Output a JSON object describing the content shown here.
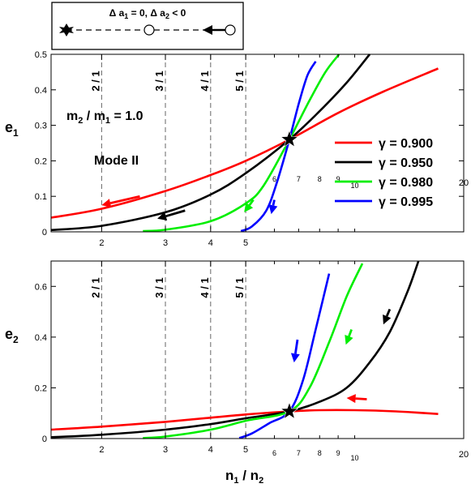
{
  "legend_box": {
    "label": "Δ a1 = 0, Δ a2 < 0",
    "parts": [
      "Δ a",
      "1",
      " = 0, Δ a",
      "2",
      " < 0"
    ]
  },
  "annotations": {
    "mass_ratio": [
      "m",
      "2",
      " / m",
      "1",
      " = 1.0"
    ],
    "mode": "Mode II"
  },
  "colors": {
    "0.900": "#ff0000",
    "0.950": "#000000",
    "0.980": "#00ee00",
    "0.995": "#0000ff"
  },
  "chart_data": [
    {
      "type": "line",
      "panel": "top",
      "ylabel": [
        "e",
        "1"
      ],
      "xscale": "log",
      "xlim": [
        1.45,
        20
      ],
      "ylim": [
        0,
        0.5
      ],
      "yticks": [
        "0",
        "0.1",
        "0.2",
        "0.3",
        "0.4",
        "0.5"
      ],
      "xticks": [
        {
          "value": 2,
          "label": "2"
        },
        {
          "value": 3,
          "label": "3"
        },
        {
          "value": 4,
          "label": "4"
        },
        {
          "value": 5,
          "label": "5"
        },
        {
          "value": 6,
          "label": "6"
        },
        {
          "value": 7,
          "label": "7"
        },
        {
          "value": 8,
          "label": "8"
        },
        {
          "value": 9,
          "label": "9"
        },
        {
          "value": 10,
          "label": "10"
        },
        {
          "value": 20,
          "label": "20"
        }
      ],
      "resonances": [
        {
          "x": 2,
          "label": "2 / 1"
        },
        {
          "x": 3,
          "label": "3 / 1"
        },
        {
          "x": 4,
          "label": "4 / 1"
        },
        {
          "x": 5,
          "label": "5 / 1"
        }
      ],
      "star": {
        "x": 6.6,
        "y": 0.26
      },
      "legend": [
        {
          "label": "γ = 0.900",
          "color": "#ff0000"
        },
        {
          "label": "γ = 0.950",
          "color": "#000000"
        },
        {
          "label": "γ = 0.980",
          "color": "#00ee00"
        },
        {
          "label": "γ = 0.995",
          "color": "#0000ff"
        }
      ],
      "series": [
        {
          "name": "γ = 0.900",
          "color": "#ff0000",
          "x": [
            1.45,
            2,
            3,
            4,
            5,
            6.6,
            9,
            12,
            17
          ],
          "y": [
            0.04,
            0.065,
            0.115,
            0.16,
            0.2,
            0.26,
            0.335,
            0.395,
            0.46
          ]
        },
        {
          "name": "γ = 0.950",
          "color": "#000000",
          "x": [
            1.45,
            2,
            3,
            4,
            5,
            6.6,
            8,
            9.5,
            11
          ],
          "y": [
            0.005,
            0.017,
            0.055,
            0.105,
            0.165,
            0.26,
            0.34,
            0.42,
            0.5
          ]
        },
        {
          "name": "γ = 0.980",
          "color": "#00ee00",
          "x": [
            2.6,
            3,
            4,
            5,
            5.6,
            6.6,
            7.5,
            8.3,
            9.05
          ],
          "y": [
            0.002,
            0.006,
            0.03,
            0.08,
            0.13,
            0.26,
            0.37,
            0.45,
            0.5
          ]
        },
        {
          "name": "γ = 0.995",
          "color": "#0000ff",
          "x": [
            4.85,
            5.2,
            5.7,
            6.1,
            6.6,
            7.0,
            7.4,
            7.8
          ],
          "y": [
            0.002,
            0.015,
            0.06,
            0.14,
            0.26,
            0.36,
            0.44,
            0.48
          ]
        }
      ],
      "arrows": [
        {
          "color": "#ff0000",
          "from": [
            2.55,
            0.1
          ],
          "to": [
            2.0,
            0.075
          ]
        },
        {
          "color": "#000000",
          "from": [
            3.4,
            0.06
          ],
          "to": [
            2.85,
            0.037
          ]
        },
        {
          "color": "#00ee00",
          "from": [
            5.25,
            0.09
          ],
          "to": [
            4.95,
            0.055
          ]
        },
        {
          "color": "#0000ff",
          "from": [
            6.0,
            0.09
          ],
          "to": [
            5.88,
            0.05
          ]
        }
      ]
    },
    {
      "type": "line",
      "panel": "bottom",
      "ylabel": [
        "e",
        "2"
      ],
      "xlabel": [
        "n",
        "1",
        " / n",
        "2"
      ],
      "xscale": "log",
      "xlim": [
        1.45,
        20
      ],
      "ylim": [
        0,
        0.7
      ],
      "yticks": [
        "0",
        "0.2",
        "0.4",
        "0.6"
      ],
      "xticks": [
        {
          "value": 2,
          "label": "2"
        },
        {
          "value": 3,
          "label": "3"
        },
        {
          "value": 4,
          "label": "4"
        },
        {
          "value": 5,
          "label": "5"
        },
        {
          "value": 6,
          "label": "6"
        },
        {
          "value": 7,
          "label": "7"
        },
        {
          "value": 8,
          "label": "8"
        },
        {
          "value": 9,
          "label": "9"
        },
        {
          "value": 10,
          "label": "10"
        },
        {
          "value": 20,
          "label": "20"
        }
      ],
      "resonances": [
        {
          "x": 2,
          "label": "2 / 1"
        },
        {
          "x": 3,
          "label": "3 / 1"
        },
        {
          "x": 4,
          "label": "4 / 1"
        },
        {
          "x": 5,
          "label": "5 / 1"
        }
      ],
      "star": {
        "x": 6.6,
        "y": 0.107
      },
      "series": [
        {
          "name": "γ = 0.900",
          "color": "#ff0000",
          "x": [
            1.45,
            2,
            3,
            4,
            5,
            6.6,
            8,
            10,
            13,
            17
          ],
          "y": [
            0.035,
            0.047,
            0.066,
            0.082,
            0.095,
            0.107,
            0.112,
            0.112,
            0.107,
            0.097
          ]
        },
        {
          "name": "γ = 0.950",
          "color": "#000000",
          "x": [
            1.45,
            2,
            3,
            4,
            5,
            6.6,
            8,
            9.5,
            11,
            12.5,
            14,
            15
          ],
          "y": [
            0.005,
            0.015,
            0.035,
            0.057,
            0.08,
            0.107,
            0.145,
            0.2,
            0.3,
            0.42,
            0.58,
            0.7
          ]
        },
        {
          "name": "γ = 0.980",
          "color": "#00ee00",
          "x": [
            2.6,
            3,
            4,
            5,
            6.6,
            7.5,
            8.5,
            9.5,
            10.5
          ],
          "y": [
            0.002,
            0.008,
            0.035,
            0.07,
            0.107,
            0.2,
            0.38,
            0.56,
            0.69
          ]
        },
        {
          "name": "γ = 0.995",
          "color": "#0000ff",
          "x": [
            4.8,
            5.2,
            5.8,
            6.6,
            7.2,
            7.8,
            8.5
          ],
          "y": [
            0.002,
            0.02,
            0.06,
            0.107,
            0.23,
            0.43,
            0.65
          ]
        }
      ],
      "arrows": [
        {
          "color": "#ff0000",
          "from": [
            10.8,
            0.155
          ],
          "to": [
            9.5,
            0.16
          ]
        },
        {
          "color": "#000000",
          "from": [
            12.5,
            0.51
          ],
          "to": [
            12.0,
            0.45
          ]
        },
        {
          "color": "#00ee00",
          "from": [
            9.8,
            0.43
          ],
          "to": [
            9.45,
            0.37
          ]
        },
        {
          "color": "#0000ff",
          "from": [
            6.95,
            0.39
          ],
          "to": [
            6.8,
            0.3
          ]
        }
      ]
    }
  ]
}
